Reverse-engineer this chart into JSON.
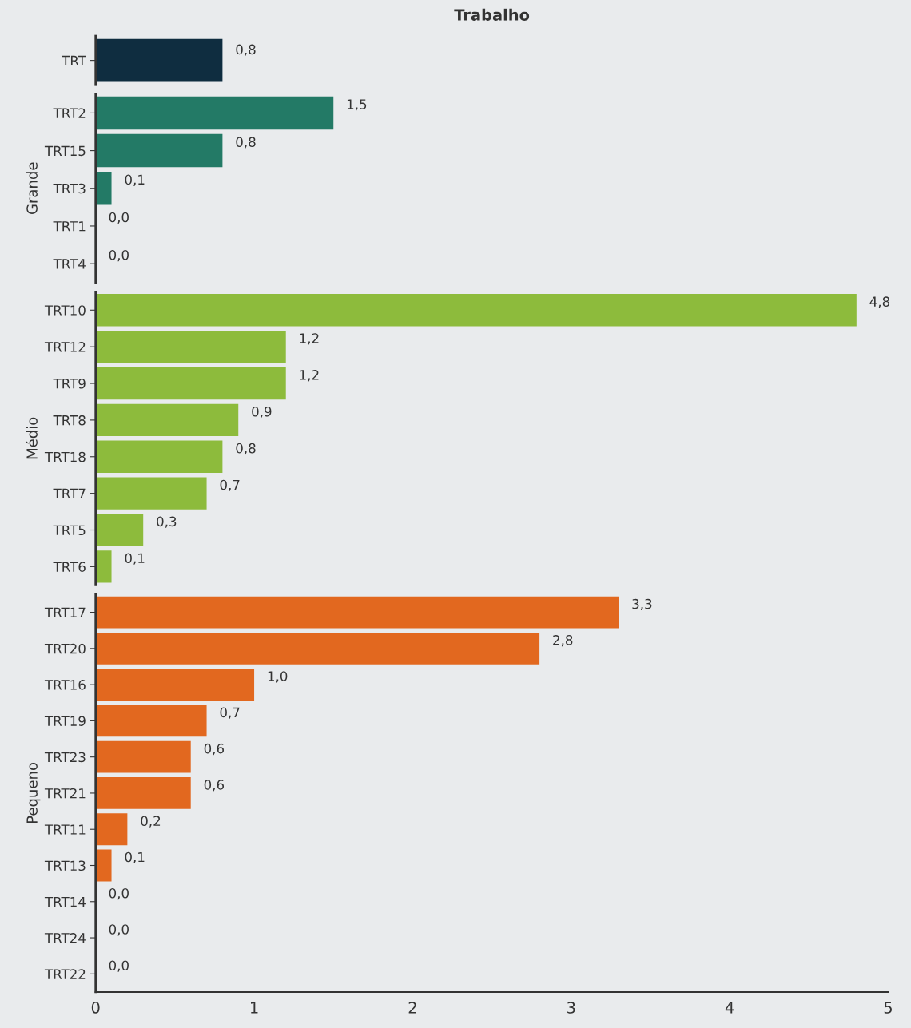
{
  "chart_data": [
    {
      "type": "bar",
      "orientation": "horizontal",
      "title": "Trabalho",
      "categories": [
        "TRT"
      ],
      "values": [
        0.8
      ],
      "color": "#0f2d40",
      "value_labels": [
        "0,8"
      ],
      "xlim": [
        0,
        5
      ],
      "tick_labels": "y"
    },
    {
      "type": "bar",
      "orientation": "horizontal",
      "ylabel": "Grande",
      "categories": [
        "TRT2",
        "TRT15",
        "TRT3",
        "TRT1",
        "TRT4"
      ],
      "values": [
        1.5,
        0.8,
        0.1,
        0.0,
        0.0
      ],
      "color": "#237a66",
      "value_labels": [
        "1,5",
        "0,8",
        "0,1",
        "0,0",
        "0,0"
      ],
      "xlim": [
        0,
        5
      ],
      "tick_labels": "y"
    },
    {
      "type": "bar",
      "orientation": "horizontal",
      "ylabel": "Médio",
      "categories": [
        "TRT10",
        "TRT12",
        "TRT9",
        "TRT8",
        "TRT18",
        "TRT7",
        "TRT5",
        "TRT6"
      ],
      "values": [
        4.8,
        1.2,
        1.2,
        0.9,
        0.8,
        0.7,
        0.3,
        0.1
      ],
      "color": "#8dbb3c",
      "value_labels": [
        "4,8",
        "1,2",
        "1,2",
        "0,9",
        "0,8",
        "0,7",
        "0,3",
        "0,1"
      ],
      "xlim": [
        0,
        5
      ],
      "tick_labels": "y"
    },
    {
      "type": "bar",
      "orientation": "horizontal",
      "ylabel": "Pequeno",
      "categories": [
        "TRT17",
        "TRT20",
        "TRT16",
        "TRT19",
        "TRT23",
        "TRT21",
        "TRT11",
        "TRT13",
        "TRT14",
        "TRT24",
        "TRT22"
      ],
      "values": [
        3.3,
        2.8,
        1.0,
        0.7,
        0.6,
        0.6,
        0.2,
        0.1,
        0.0,
        0.0,
        0.0
      ],
      "color": "#e2681f",
      "value_labels": [
        "3,3",
        "2,8",
        "1,0",
        "0,7",
        "0,6",
        "0,6",
        "0,2",
        "0,1",
        "0,0",
        "0,0",
        "0,0"
      ],
      "xlim": [
        0,
        5
      ],
      "xticks": [
        0,
        1,
        2,
        3,
        4,
        5
      ]
    }
  ]
}
